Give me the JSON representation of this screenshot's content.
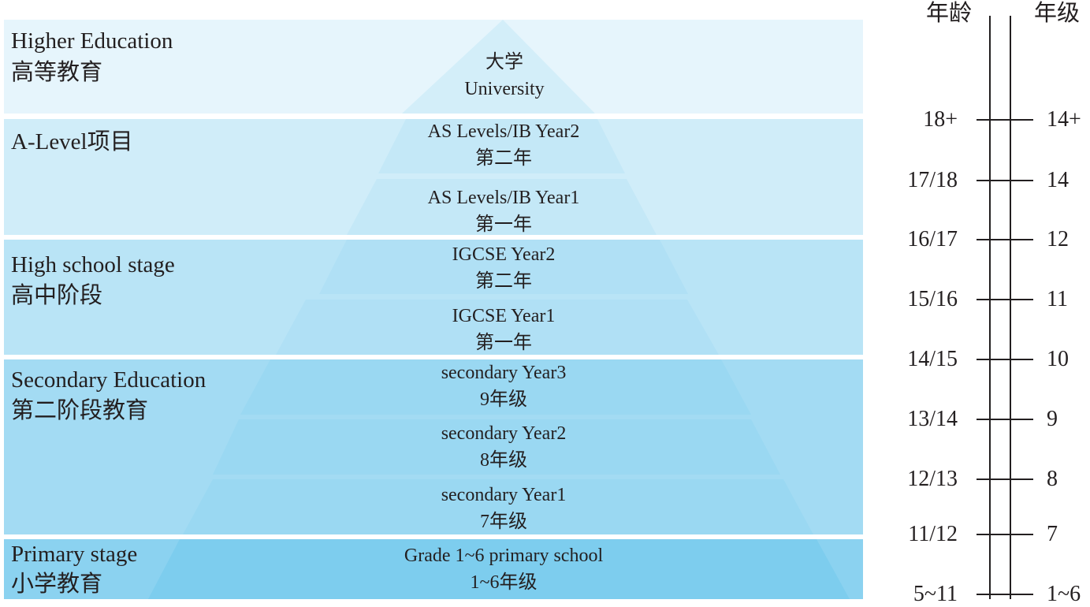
{
  "stages": [
    {
      "en": "Higher Education",
      "zh": "高等教育",
      "color": "#e6f5fc"
    },
    {
      "en": "A-Level项目",
      "zh": "",
      "color": "#d0edf9"
    },
    {
      "en": "High school stage",
      "zh": "高中阶段",
      "color": "#b9e4f6"
    },
    {
      "en": "Secondary Education",
      "zh": "第二阶段教育",
      "color": "#a3dbf3"
    },
    {
      "en": "Primary stage",
      "zh": "小学教育",
      "color": "#8bd2f0"
    }
  ],
  "layers": [
    {
      "line1": "大学",
      "line2": "University",
      "color": "#d3eef9"
    },
    {
      "line1": "AS Levels/IB Year2",
      "line2": "第二年",
      "color": "#c4e8f7"
    },
    {
      "line1": "AS Levels/IB Year1",
      "line2": "第一年",
      "color": "#c4e8f7"
    },
    {
      "line1": "IGCSE Year2",
      "line2": "第二年",
      "color": "#b0e0f5"
    },
    {
      "line1": "IGCSE Year1",
      "line2": "第一年",
      "color": "#b0e0f5"
    },
    {
      "line1": "secondary Year3",
      "line2": "9年级",
      "color": "#9ad8f2"
    },
    {
      "line1": "secondary Year2",
      "line2": "8年级",
      "color": "#9ad8f2"
    },
    {
      "line1": "secondary Year1",
      "line2": "7年级",
      "color": "#9ad8f2"
    },
    {
      "line1": "Grade 1~6 primary school",
      "line2": "1~6年级",
      "color": "#7dcdee"
    }
  ],
  "axis": {
    "age_title": "年龄",
    "grade_title": "年级",
    "ticks": [
      {
        "age": "18+",
        "grade": "14+"
      },
      {
        "age": "17/18",
        "grade": "14"
      },
      {
        "age": "16/17",
        "grade": "12"
      },
      {
        "age": "15/16",
        "grade": "11"
      },
      {
        "age": "14/15",
        "grade": "10"
      },
      {
        "age": "13/14",
        "grade": "9"
      },
      {
        "age": "12/13",
        "grade": "8"
      },
      {
        "age": "11/12",
        "grade": "7"
      },
      {
        "age": "5~11",
        "grade": "1~6"
      }
    ]
  }
}
